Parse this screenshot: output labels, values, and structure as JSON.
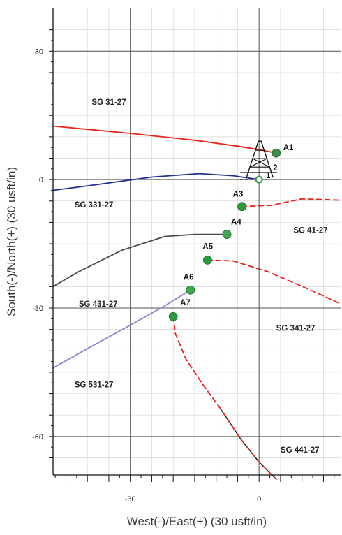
{
  "chart_data": {
    "type": "line",
    "xlabel": "West(-)/East(+) (30 usft/in)",
    "ylabel": "South(-)/North(+) (30 usft/in)",
    "xlim": [
      -48,
      19
    ],
    "ylim": [
      -69,
      40
    ],
    "x_ticks": [
      -30,
      0
    ],
    "y_ticks": [
      30,
      0,
      -30,
      -60
    ],
    "grid": true,
    "series": [
      {
        "name": "SG 31-27",
        "color": "#e8231a",
        "style": "solid",
        "points": [
          [
            -48,
            12.5
          ],
          [
            -30,
            10.8
          ],
          [
            -15,
            9.2
          ],
          [
            -5,
            7.8
          ],
          [
            0,
            7.0
          ],
          [
            4,
            6.2
          ]
        ]
      },
      {
        "name": "SG 331-27",
        "color": "#1f2f8f",
        "style": "solid",
        "points": [
          [
            -48,
            -2.5
          ],
          [
            -38,
            -1.2
          ],
          [
            -25,
            0.6
          ],
          [
            -14,
            1.4
          ],
          [
            -6,
            0.9
          ],
          [
            0,
            0
          ]
        ]
      },
      {
        "name": "SG 41-27",
        "color": "#e8231a",
        "style": "dashed",
        "points": [
          [
            -4,
            -6.3
          ],
          [
            3,
            -6.0
          ],
          [
            10,
            -4.5
          ],
          [
            19,
            -4.8
          ]
        ]
      },
      {
        "name": "SG 431-27",
        "color": "#4a4a4a",
        "style": "solid",
        "points": [
          [
            -48,
            -25
          ],
          [
            -42,
            -21.5
          ],
          [
            -32,
            -16.5
          ],
          [
            -22,
            -13.3
          ],
          [
            -15,
            -12.8
          ],
          [
            -8,
            -12.8
          ]
        ]
      },
      {
        "name": "SG 341-27",
        "color": "#e8231a",
        "style": "dashed",
        "points": [
          [
            -12,
            -18.8
          ],
          [
            -6,
            -19.0
          ],
          [
            2,
            -21.5
          ],
          [
            12,
            -25.8
          ],
          [
            19,
            -29
          ]
        ]
      },
      {
        "name": "SG 531-27",
        "color": "#8e80cf",
        "style": "solid",
        "points": [
          [
            -48,
            -44
          ],
          [
            -40,
            -39.5
          ],
          [
            -30,
            -34
          ],
          [
            -22,
            -29.5
          ],
          [
            -16,
            -25.8
          ]
        ]
      },
      {
        "name": "SG 441-27",
        "color": "#e8231a",
        "style": "dashed",
        "points": [
          [
            -20,
            -32
          ],
          [
            -19.5,
            -36
          ],
          [
            -17,
            -42
          ],
          [
            -13,
            -48
          ],
          [
            -9,
            -53.5
          ],
          [
            -4,
            -61
          ],
          [
            0,
            -66
          ],
          [
            4,
            -70
          ]
        ]
      }
    ],
    "series_labels": [
      {
        "text": "SG 31-27",
        "x": -39,
        "y": 17.5
      },
      {
        "text": "SG 331-27",
        "x": -43,
        "y": -6.5
      },
      {
        "text": "SG 41-27",
        "x": 8,
        "y": -12.5
      },
      {
        "text": "SG 431-27",
        "x": -42,
        "y": -29.7
      },
      {
        "text": "SG 341-27",
        "x": 4,
        "y": -35.3
      },
      {
        "text": "SG 531-27",
        "x": -43,
        "y": -48.5
      },
      {
        "text": "SG 441-27",
        "x": 5,
        "y": -63.8
      }
    ],
    "points": [
      {
        "name": "A1",
        "x": 4,
        "y": 6.2,
        "color": "#3f8c4a"
      },
      {
        "name": "A3",
        "x": -4,
        "y": -6.3,
        "color": "#2a9a3f"
      },
      {
        "name": "A4",
        "x": -7.5,
        "y": -12.8,
        "color": "#3ea84f"
      },
      {
        "name": "A5",
        "x": -12,
        "y": -18.8,
        "color": "#2a9a3f"
      },
      {
        "name": "A6",
        "x": -16,
        "y": -25.8,
        "color": "#3ea84f"
      },
      {
        "name": "A7",
        "x": -20,
        "y": -32,
        "color": "#2a9a3f"
      }
    ],
    "point_label_offsets_note": "",
    "rig_annotations": [
      "2",
      "1"
    ]
  }
}
